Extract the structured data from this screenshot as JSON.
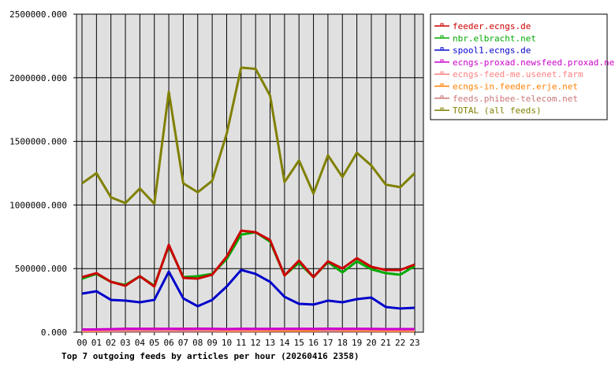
{
  "chart_data": {
    "type": "line",
    "title": "Top 7 outgoing feeds by articles per hour (20260416 2358)",
    "xlabel": "",
    "ylabel": "",
    "ylim": [
      0,
      2500000
    ],
    "yticks": [
      "0.000",
      "500000.000",
      "1000000.000",
      "1500000.000",
      "2000000.000",
      "2500000.000"
    ],
    "ytick_values": [
      0,
      500000,
      1000000,
      1500000,
      2000000,
      2500000
    ],
    "categories": [
      "00",
      "01",
      "02",
      "03",
      "04",
      "05",
      "06",
      "07",
      "08",
      "09",
      "10",
      "11",
      "12",
      "13",
      "14",
      "15",
      "16",
      "17",
      "18",
      "19",
      "20",
      "21",
      "22",
      "23"
    ],
    "grid": true,
    "legend_position": "right",
    "background": "#e0e0e0",
    "series": [
      {
        "name": "feeder.ecngs.de",
        "color": "#cc0000",
        "values": [
          433000,
          464000,
          396000,
          365000,
          440000,
          359000,
          687000,
          427000,
          421000,
          452000,
          594000,
          798000,
          786000,
          724000,
          446000,
          563000,
          433000,
          557000,
          501000,
          582000,
          514000,
          489000,
          489000,
          532000
        ]
      },
      {
        "name": "nbr.elbracht.net",
        "color": "#00aa00",
        "values": [
          421000,
          458000,
          396000,
          371000,
          440000,
          365000,
          680000,
          433000,
          440000,
          458000,
          575000,
          767000,
          786000,
          712000,
          446000,
          545000,
          433000,
          551000,
          470000,
          557000,
          495000,
          464000,
          452000,
          520000
        ]
      },
      {
        "name": "spool1.ecngs.de",
        "color": "#0000cc",
        "values": [
          303000,
          322000,
          254000,
          248000,
          235000,
          254000,
          476000,
          266000,
          204000,
          254000,
          359000,
          489000,
          458000,
          396000,
          278000,
          223000,
          217000,
          248000,
          235000,
          260000,
          272000,
          198000,
          186000,
          192000
        ]
      },
      {
        "name": "ecngs-proxad.newsfeed.proxad.net",
        "color": "#cc00cc",
        "values": [
          22000,
          22000,
          24000,
          27000,
          27000,
          26000,
          27000,
          26000,
          28000,
          27000,
          25000,
          27000,
          26000,
          26000,
          27000,
          27000,
          26000,
          28000,
          27000,
          27000,
          26000,
          25000,
          25000,
          25000
        ]
      },
      {
        "name": "ecngs-feed-me.usenet.farm",
        "color": "#ff8080",
        "values": [
          15000,
          15000,
          17000,
          20000,
          22000,
          20000,
          18000,
          22000,
          22000,
          20000,
          17000,
          18000,
          18000,
          20000,
          22000,
          22000,
          24000,
          22000,
          22000,
          20000,
          20000,
          18000,
          18000,
          18000
        ]
      },
      {
        "name": "ecngs-in.feeder.erje.net",
        "color": "#ff8000",
        "values": [
          12000,
          12000,
          18000,
          28000,
          22000,
          28000,
          20000,
          28000,
          25000,
          18000,
          12000,
          15000,
          12000,
          15000,
          15000,
          15000,
          15000,
          25000,
          18000,
          15000,
          15000,
          12000,
          12000,
          12000
        ]
      },
      {
        "name": "feeds.phibee-telecom.net",
        "color": "#cc7777",
        "values": [
          8000,
          8000,
          8000,
          8000,
          8000,
          8000,
          8000,
          8000,
          8000,
          8000,
          8000,
          8000,
          8000,
          8000,
          8000,
          8000,
          8000,
          8000,
          8000,
          8000,
          8000,
          8000,
          8000,
          8000
        ]
      },
      {
        "name": "TOTAL (all feeds)",
        "color": "#808000",
        "values": [
          1170000,
          1250000,
          1060000,
          1015000,
          1130000,
          1010000,
          1890000,
          1170000,
          1100000,
          1190000,
          1560000,
          2080000,
          2070000,
          1860000,
          1180000,
          1350000,
          1090000,
          1390000,
          1220000,
          1410000,
          1310000,
          1160000,
          1140000,
          1250000
        ]
      }
    ]
  }
}
